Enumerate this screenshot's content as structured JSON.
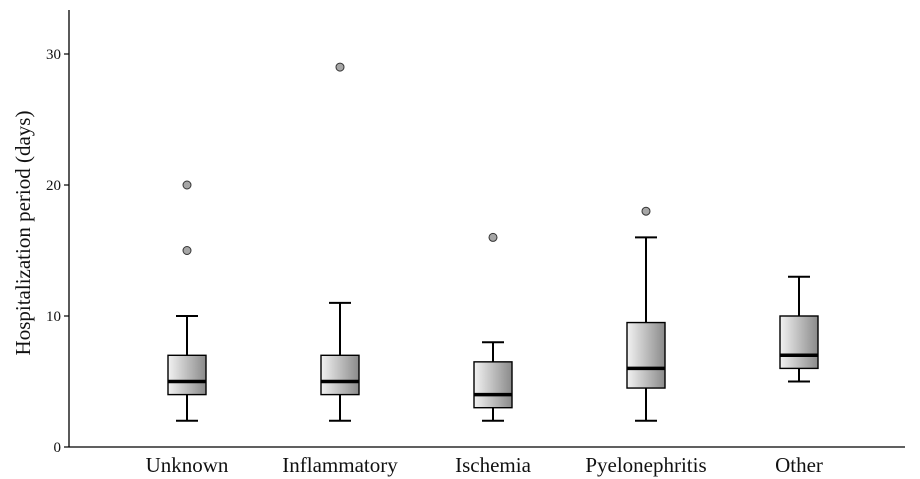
{
  "chart_data": {
    "type": "boxplot",
    "title": "",
    "xlabel": "",
    "ylabel": "Hospitalization period (days)",
    "ylim": [
      0,
      32
    ],
    "yticks": [
      0,
      10,
      20,
      30
    ],
    "grid": false,
    "categories": [
      "Unknown",
      "Inflammatory",
      "Ischemia",
      "Pyelonephritis",
      "Other"
    ],
    "boxes": [
      {
        "category": "Unknown",
        "whisker_low": 2,
        "q1": 4,
        "median": 5,
        "q3": 7,
        "whisker_high": 10,
        "outliers": [
          15,
          20
        ]
      },
      {
        "category": "Inflammatory",
        "whisker_low": 2,
        "q1": 4,
        "median": 5,
        "q3": 7,
        "whisker_high": 11,
        "outliers": [
          29
        ]
      },
      {
        "category": "Ischemia",
        "whisker_low": 2,
        "q1": 3,
        "median": 4,
        "q3": 6.5,
        "whisker_high": 8,
        "outliers": [
          16
        ]
      },
      {
        "category": "Pyelonephritis",
        "whisker_low": 2,
        "q1": 4.5,
        "median": 6,
        "q3": 9.5,
        "whisker_high": 16,
        "outliers": [
          18
        ]
      },
      {
        "category": "Other",
        "whisker_low": 5,
        "q1": 6,
        "median": 7,
        "q3": 10,
        "whisker_high": 13,
        "outliers": []
      }
    ],
    "colors": {
      "box_light": "#f2f2f2",
      "box_dark": "#8a8a8a",
      "outlier_fill": "#a6a6a6",
      "line": "#000000"
    }
  }
}
